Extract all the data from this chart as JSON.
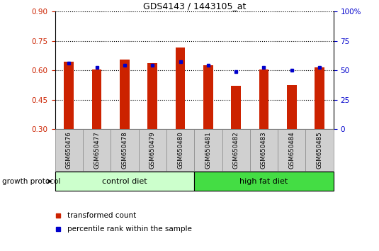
{
  "title": "GDS4143 / 1443105_at",
  "samples": [
    "GSM650476",
    "GSM650477",
    "GSM650478",
    "GSM650479",
    "GSM650480",
    "GSM650481",
    "GSM650482",
    "GSM650483",
    "GSM650484",
    "GSM650485"
  ],
  "red_values": [
    0.645,
    0.605,
    0.655,
    0.635,
    0.715,
    0.625,
    0.52,
    0.605,
    0.525,
    0.615
  ],
  "blue_values": [
    0.635,
    0.615,
    0.625,
    0.625,
    0.645,
    0.625,
    0.595,
    0.615,
    0.6,
    0.615
  ],
  "y_min": 0.3,
  "y_max": 0.9,
  "y_ticks_left": [
    0.3,
    0.45,
    0.6,
    0.75,
    0.9
  ],
  "y_ticks_right": [
    0,
    25,
    50,
    75,
    100
  ],
  "y_right_labels": [
    "0",
    "25",
    "50",
    "75",
    "100%"
  ],
  "bar_color": "#cc2200",
  "dot_color": "#0000cc",
  "groups": [
    {
      "label": "control diet",
      "start": 0,
      "end": 4,
      "color": "#ccffcc"
    },
    {
      "label": "high fat diet",
      "start": 5,
      "end": 9,
      "color": "#44dd44"
    }
  ],
  "group_header": "growth protocol",
  "legend_items": [
    {
      "label": "transformed count",
      "color": "#cc2200"
    },
    {
      "label": "percentile rank within the sample",
      "color": "#0000cc"
    }
  ],
  "bar_color_left_tick": "#cc2200",
  "bar_color_right_tick": "#0000cc",
  "bar_width": 0.35,
  "label_box_color": "#d0d0d0"
}
